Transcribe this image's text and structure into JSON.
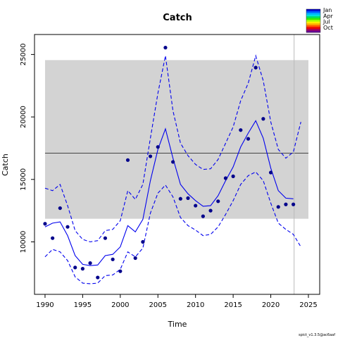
{
  "chart_data": {
    "type": "line",
    "title": "Catch",
    "xlabel": "Time",
    "ylabel": "Catch",
    "xlim": [
      1988.6,
      2026.5
    ],
    "ylim": [
      5800,
      26600
    ],
    "x_ticks": [
      1990,
      1995,
      2000,
      2005,
      2010,
      2015,
      2020,
      2025
    ],
    "y_ticks": [
      10000,
      15000,
      20000,
      25000
    ],
    "grid": false,
    "band": {
      "name": "",
      "x_start": 1990,
      "x_end": 2025,
      "y_low": 11850,
      "y_high": 24550,
      "color": "#d3d3d3"
    },
    "mean_line": {
      "y": 17100,
      "color": "#444444"
    },
    "vertical_line": {
      "x": 2023.1,
      "color": "#bbbbbb"
    },
    "series": [
      {
        "name": "",
        "role": "estimate",
        "style": "solid",
        "color": "#0000ee",
        "x": [
          1990,
          1991,
          1992,
          1993,
          1994,
          1995,
          1996,
          1997,
          1998,
          1999,
          2000,
          2001,
          2002,
          2003,
          2004,
          2005,
          2006,
          2007,
          2008,
          2009,
          2010,
          2011,
          2012,
          2013,
          2014,
          2015,
          2016,
          2017,
          2018,
          2019,
          2020,
          2021,
          2022,
          2023
        ],
        "values": [
          11200,
          11500,
          11600,
          10500,
          8900,
          8200,
          8100,
          8150,
          8900,
          9000,
          9600,
          11300,
          10800,
          11800,
          14900,
          17400,
          19050,
          16700,
          14600,
          13850,
          13300,
          12850,
          12900,
          13700,
          14900,
          16000,
          17600,
          18700,
          19700,
          18300,
          15900,
          14100,
          13500,
          13450
        ]
      },
      {
        "name": "",
        "role": "upper-ci",
        "style": "dashed",
        "color": "#0000ee",
        "x": [
          1990,
          1991,
          1992,
          1993,
          1994,
          1995,
          1996,
          1997,
          1998,
          1999,
          2000,
          2001,
          2002,
          2003,
          2004,
          2005,
          2006,
          2007,
          2008,
          2009,
          2010,
          2011,
          2012,
          2013,
          2014,
          2015,
          2016,
          2017,
          2018,
          2019,
          2020,
          2021,
          2022,
          2023,
          2024
        ],
        "values": [
          14300,
          14100,
          14600,
          12900,
          10900,
          10200,
          10000,
          10100,
          10900,
          11000,
          11700,
          14100,
          13400,
          14600,
          18300,
          21900,
          24900,
          20500,
          17900,
          16900,
          16200,
          15800,
          15850,
          16600,
          17900,
          19200,
          21300,
          22700,
          24900,
          22900,
          19600,
          17400,
          16700,
          17200,
          19600
        ]
      },
      {
        "name": "",
        "role": "lower-ci",
        "style": "dashed",
        "color": "#0000ee",
        "x": [
          1990,
          1991,
          1992,
          1993,
          1994,
          1995,
          1996,
          1997,
          1998,
          1999,
          2000,
          2001,
          2002,
          2003,
          2004,
          2005,
          2006,
          2007,
          2008,
          2009,
          2010,
          2011,
          2012,
          2013,
          2014,
          2015,
          2016,
          2017,
          2018,
          2019,
          2020,
          2021,
          2022,
          2023,
          2024
        ],
        "values": [
          8800,
          9400,
          9200,
          8500,
          7200,
          6700,
          6650,
          6700,
          7300,
          7350,
          7800,
          9200,
          8800,
          9500,
          12300,
          13900,
          14550,
          13600,
          11950,
          11300,
          10950,
          10500,
          10600,
          11200,
          12200,
          13300,
          14600,
          15300,
          15600,
          14900,
          13100,
          11500,
          11000,
          10600,
          9600
        ]
      },
      {
        "name": "",
        "role": "observed",
        "style": "points",
        "color": "#00008b",
        "x": [
          1990,
          1991,
          1992,
          1993,
          1994,
          1995,
          1996,
          1997,
          1998,
          1999,
          2000,
          2001,
          2002,
          2003,
          2004,
          2005,
          2006,
          2007,
          2008,
          2009,
          2010,
          2011,
          2012,
          2013,
          2014,
          2015,
          2016,
          2017,
          2018,
          2019,
          2020,
          2021,
          2022,
          2023
        ],
        "values": [
          11450,
          10300,
          12700,
          11200,
          7950,
          7850,
          8300,
          7150,
          10300,
          8600,
          7650,
          16550,
          8700,
          10000,
          16850,
          17600,
          25550,
          16400,
          13450,
          13500,
          12900,
          12050,
          12500,
          13250,
          15100,
          15250,
          18950,
          18250,
          23950,
          19850,
          15550,
          12800,
          13000,
          13000
        ]
      }
    ],
    "legend": {
      "position": "top-right",
      "entries": [
        "Jan",
        "Apr",
        "Jul",
        "Oct"
      ],
      "colors": [
        "#0000cc",
        "#0055ff",
        "#00aaff",
        "#00e0e0",
        "#00dd66",
        "#33ee00",
        "#aaff00",
        "#ffee00",
        "#ffaa00",
        "#ff5500",
        "#ee0000",
        "#aa0055",
        "#660099"
      ]
    },
    "footer_text": "spict_v1.3.5@ac6aaf"
  }
}
